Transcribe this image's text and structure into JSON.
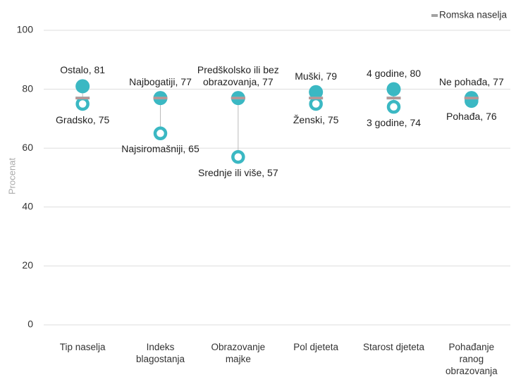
{
  "chart_data": {
    "type": "dumbbell",
    "categories": [
      "Tip naselja",
      "Indeks blagostanja",
      "Obrazovanje majke",
      "Pol djeteta",
      "Starost djeteta",
      "Pohađanje ranog obrazovanja"
    ],
    "y_axis_label": "Procenat",
    "ylim": [
      0,
      100
    ],
    "yticks": [
      0,
      20,
      40,
      60,
      80,
      100
    ],
    "grid": true,
    "legend": "top-right",
    "series": [
      {
        "color": "#3bb8c3",
        "values": [
          81,
          77,
          77,
          79,
          80,
          77
        ],
        "value_labels": [
          "Ostalo, 81",
          "Najbogatiji, 77",
          "Predškolsko ili bez obrazovanja, 77",
          "Muški, 79",
          "4 godine, 80",
          "Ne pohađa, 77"
        ]
      },
      {
        "color": "#3bb8c3",
        "values": [
          75,
          65,
          57,
          75,
          74,
          76
        ],
        "value_labels": [
          "Gradsko, 75",
          "Najsiromašniji, 65",
          "Srednje ili više, 57",
          "Ženski, 75",
          "3 godine, 74",
          "Pohađa, 76"
        ]
      },
      {
        "name": "Romska naselja",
        "color": "#a3a3a3",
        "values": [
          77,
          77,
          77,
          77,
          77,
          77
        ]
      }
    ]
  }
}
